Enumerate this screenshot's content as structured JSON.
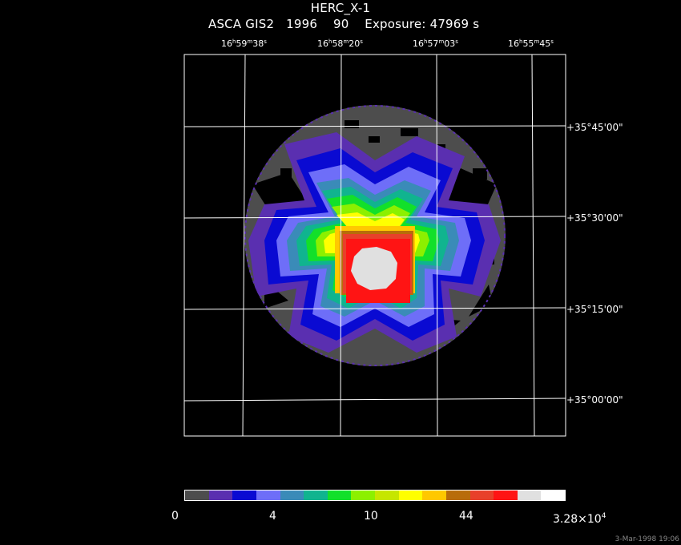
{
  "header": {
    "object": "HERC_X-1",
    "instrument_line": "ASCA GIS2   1996    90    Exposure: 47969 s"
  },
  "ra_ticks": [
    {
      "h": "16",
      "m": "59",
      "s": "38"
    },
    {
      "h": "16",
      "m": "58",
      "s": "20"
    },
    {
      "h": "16",
      "m": "57",
      "s": "03"
    },
    {
      "h": "16",
      "m": "55",
      "s": "45"
    }
  ],
  "dec_ticks": [
    "+35°45'00\"",
    "+35°30'00\"",
    "+35°15'00\"",
    "+35°00'00\""
  ],
  "colorbar": {
    "colors": [
      "#4d4d4d",
      "#5a2fb0",
      "#0a0ad2",
      "#6e6ef8",
      "#3a8bb8",
      "#10b48f",
      "#12e02a",
      "#8cf000",
      "#c6e600",
      "#ffff00",
      "#ffc800",
      "#b86c0a",
      "#e8402a",
      "#ff1414",
      "#e0e0e0",
      "#ffffff"
    ],
    "labels": {
      "min": "0",
      "l1": "4",
      "l2": "10",
      "l3": "44",
      "max_base": "3.28×10",
      "max_exp": "4"
    }
  },
  "footer": {
    "date": "3-Mar-1998 19:06"
  }
}
